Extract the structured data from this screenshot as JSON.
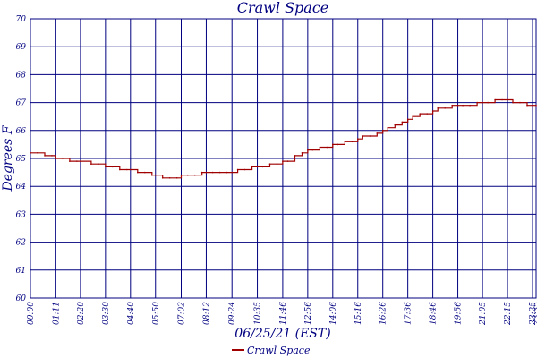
{
  "chart_data": {
    "type": "line",
    "title": "Crawl Space",
    "xlabel": "06/25/21 (EST)",
    "ylabel": "Degrees F",
    "ylim": [
      60,
      70
    ],
    "yticks": [
      "60",
      "61",
      "62",
      "63",
      "64",
      "65",
      "66",
      "67",
      "68",
      "69",
      "70"
    ],
    "xticks": [
      "00:00",
      "01:11",
      "02:20",
      "03:30",
      "04:40",
      "05:50",
      "07:02",
      "08:12",
      "09:24",
      "10:35",
      "11:46",
      "12:56",
      "14:06",
      "15:16",
      "16:26",
      "17:36",
      "18:46",
      "19:56",
      "21:05",
      "22:15",
      "23:25",
      "23:35"
    ],
    "grid": true,
    "legend_position": "bottom-center",
    "series": [
      {
        "name": "Crawl Space",
        "color": "#a00000",
        "x": [
          "00:00",
          "00:20",
          "00:40",
          "01:00",
          "01:11",
          "01:30",
          "01:50",
          "02:10",
          "02:20",
          "02:50",
          "03:10",
          "03:30",
          "03:50",
          "04:10",
          "04:30",
          "04:40",
          "05:00",
          "05:20",
          "05:40",
          "05:50",
          "06:10",
          "06:30",
          "06:50",
          "07:02",
          "07:20",
          "07:40",
          "08:00",
          "08:12",
          "08:30",
          "08:50",
          "09:10",
          "09:24",
          "09:40",
          "10:00",
          "10:20",
          "10:35",
          "10:50",
          "11:10",
          "11:30",
          "11:46",
          "12:00",
          "12:20",
          "12:40",
          "12:56",
          "13:10",
          "13:30",
          "13:50",
          "14:06",
          "14:20",
          "14:40",
          "15:00",
          "15:16",
          "15:30",
          "15:50",
          "16:10",
          "16:26",
          "16:40",
          "17:00",
          "17:20",
          "17:36",
          "17:50",
          "18:10",
          "18:30",
          "18:46",
          "19:00",
          "19:20",
          "19:40",
          "19:56",
          "20:10",
          "20:30",
          "20:50",
          "21:05",
          "21:20",
          "21:40",
          "22:00",
          "22:15",
          "22:30",
          "22:50",
          "23:10",
          "23:25",
          "23:35"
        ],
        "values": [
          65.2,
          65.2,
          65.1,
          65.1,
          65.0,
          65.0,
          64.9,
          64.9,
          64.9,
          64.8,
          64.8,
          64.7,
          64.7,
          64.6,
          64.6,
          64.6,
          64.5,
          64.5,
          64.4,
          64.4,
          64.3,
          64.3,
          64.3,
          64.4,
          64.4,
          64.4,
          64.5,
          64.5,
          64.5,
          64.5,
          64.5,
          64.5,
          64.6,
          64.6,
          64.7,
          64.7,
          64.7,
          64.8,
          64.8,
          64.9,
          64.9,
          65.1,
          65.2,
          65.3,
          65.3,
          65.4,
          65.4,
          65.5,
          65.5,
          65.6,
          65.6,
          65.7,
          65.8,
          65.8,
          65.9,
          66.0,
          66.1,
          66.2,
          66.3,
          66.4,
          66.5,
          66.6,
          66.6,
          66.7,
          66.8,
          66.8,
          66.9,
          66.9,
          66.9,
          66.9,
          67.0,
          67.0,
          67.0,
          67.1,
          67.1,
          67.1,
          67.0,
          67.0,
          66.9,
          66.9,
          66.9
        ]
      }
    ]
  }
}
